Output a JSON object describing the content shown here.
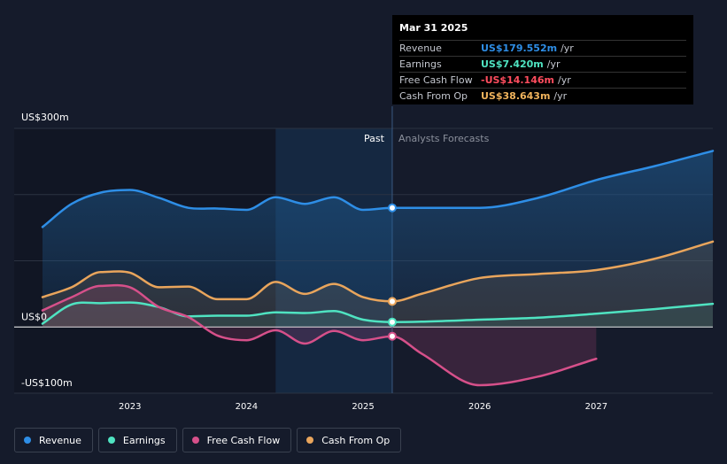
{
  "tooltip": {
    "date": "Mar 31 2025",
    "rows": [
      {
        "name": "Revenue",
        "value": "US$179.552m",
        "unit": "/yr",
        "color": "#2e8ee6"
      },
      {
        "name": "Earnings",
        "value": "US$7.420m",
        "unit": "/yr",
        "color": "#4fe3c1"
      },
      {
        "name": "Free Cash Flow",
        "value": "-US$14.146m",
        "unit": "/yr",
        "color": "#ff4d5e"
      },
      {
        "name": "Cash From Op",
        "value": "US$38.643m",
        "unit": "/yr",
        "color": "#f0b35c"
      }
    ]
  },
  "legend": [
    {
      "label": "Revenue",
      "color": "#2e8ee6"
    },
    {
      "label": "Earnings",
      "color": "#4fe3c1"
    },
    {
      "label": "Free Cash Flow",
      "color": "#d6508a"
    },
    {
      "label": "Cash From Op",
      "color": "#e9a55c"
    }
  ],
  "chart_data": {
    "type": "line",
    "title": "",
    "xlabel": "",
    "ylabel": "",
    "ylim": [
      -100,
      300
    ],
    "xlim": [
      2022.25,
      2028.0
    ],
    "y_tick_labels": [
      {
        "value": 300,
        "label": "US$300m"
      },
      {
        "value": 0,
        "label": "US$0"
      },
      {
        "value": -100,
        "label": "-US$100m"
      }
    ],
    "x_ticks": [
      2023,
      2024,
      2025,
      2026,
      2027
    ],
    "x_tick_labels": [
      "2023",
      "2024",
      "2025",
      "2026",
      "2027"
    ],
    "past_label": "Past",
    "forecast_label": "Analysts Forecasts",
    "past_end": 2025.25,
    "highlight_start": 2024.25,
    "series": [
      {
        "name": "Revenue",
        "color": "#2e8ee6",
        "points": [
          [
            2022.25,
            151
          ],
          [
            2022.5,
            186
          ],
          [
            2022.75,
            203
          ],
          [
            2023.0,
            207
          ],
          [
            2023.25,
            195
          ],
          [
            2023.5,
            180
          ],
          [
            2023.75,
            179
          ],
          [
            2024.0,
            177
          ],
          [
            2024.25,
            196
          ],
          [
            2024.5,
            186
          ],
          [
            2024.75,
            196
          ],
          [
            2025.0,
            177
          ],
          [
            2025.25,
            180
          ],
          [
            2025.5,
            180
          ],
          [
            2026.0,
            180
          ],
          [
            2026.5,
            195
          ],
          [
            2027.0,
            222
          ],
          [
            2027.5,
            243
          ],
          [
            2028.0,
            266
          ]
        ]
      },
      {
        "name": "Earnings",
        "color": "#4fe3c1",
        "points": [
          [
            2022.25,
            5
          ],
          [
            2022.5,
            34
          ],
          [
            2022.75,
            36
          ],
          [
            2023.0,
            37
          ],
          [
            2023.25,
            30
          ],
          [
            2023.5,
            16
          ],
          [
            2023.75,
            17
          ],
          [
            2024.0,
            17
          ],
          [
            2024.25,
            22
          ],
          [
            2024.5,
            21
          ],
          [
            2024.75,
            24
          ],
          [
            2025.0,
            11
          ],
          [
            2025.25,
            7.4
          ],
          [
            2025.5,
            8
          ],
          [
            2026.0,
            11
          ],
          [
            2026.5,
            14
          ],
          [
            2027.0,
            20
          ],
          [
            2027.5,
            27
          ],
          [
            2028.0,
            35
          ]
        ]
      },
      {
        "name": "Free Cash Flow",
        "color": "#d6508a",
        "points": [
          [
            2022.25,
            25
          ],
          [
            2022.5,
            45
          ],
          [
            2022.75,
            62
          ],
          [
            2023.0,
            60
          ],
          [
            2023.25,
            30
          ],
          [
            2023.5,
            15
          ],
          [
            2023.75,
            -13
          ],
          [
            2024.0,
            -20
          ],
          [
            2024.25,
            -5
          ],
          [
            2024.5,
            -25
          ],
          [
            2024.75,
            -6
          ],
          [
            2025.0,
            -20
          ],
          [
            2025.25,
            -14
          ],
          [
            2025.5,
            -40
          ],
          [
            2026.0,
            -88
          ],
          [
            2026.5,
            -75
          ],
          [
            2027.0,
            -48
          ]
        ]
      },
      {
        "name": "Cash From Op",
        "color": "#e9a55c",
        "points": [
          [
            2022.25,
            45
          ],
          [
            2022.5,
            60
          ],
          [
            2022.75,
            83
          ],
          [
            2023.0,
            82
          ],
          [
            2023.25,
            60
          ],
          [
            2023.5,
            61
          ],
          [
            2023.75,
            42
          ],
          [
            2024.0,
            42
          ],
          [
            2024.25,
            68
          ],
          [
            2024.5,
            50
          ],
          [
            2024.75,
            65
          ],
          [
            2025.0,
            45
          ],
          [
            2025.25,
            38.6
          ],
          [
            2025.5,
            50
          ],
          [
            2026.0,
            74
          ],
          [
            2026.5,
            80
          ],
          [
            2027.0,
            86
          ],
          [
            2027.5,
            103
          ],
          [
            2028.0,
            129
          ]
        ]
      }
    ]
  }
}
